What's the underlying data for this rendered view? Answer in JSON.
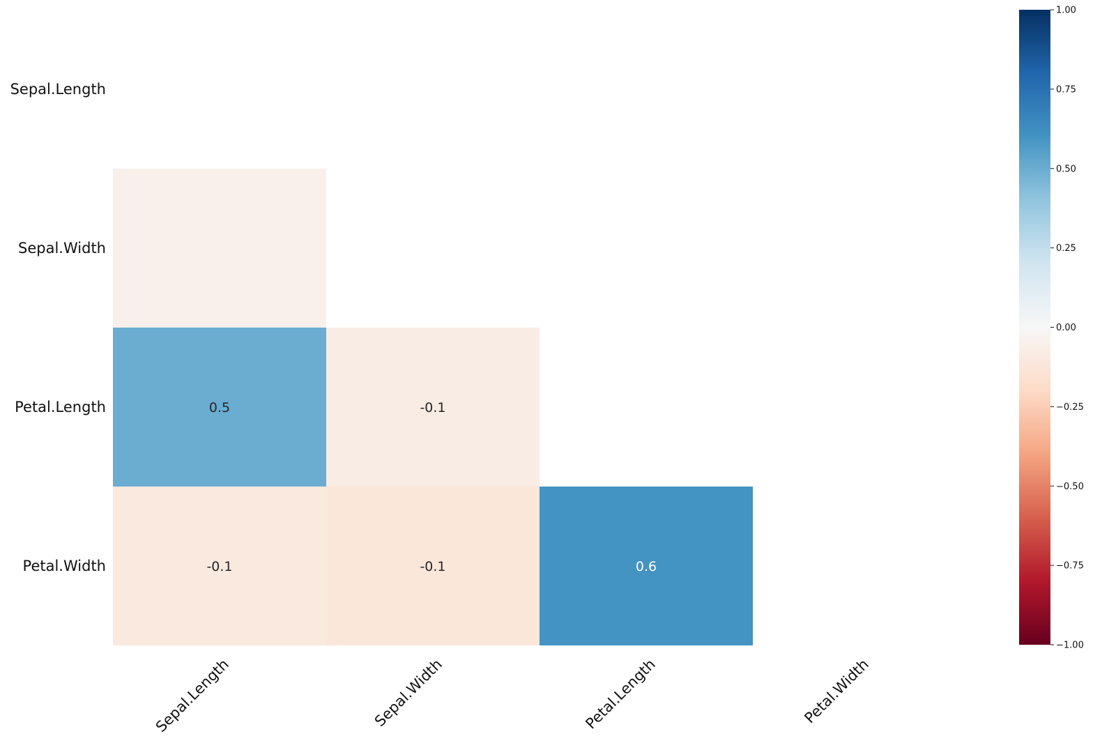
{
  "chart_data": {
    "type": "heatmap",
    "title": "",
    "xlabel": "",
    "ylabel": "",
    "rows": [
      "Sepal.Length",
      "Sepal.Width",
      "Petal.Length",
      "Petal.Width"
    ],
    "columns": [
      "Sepal.Length",
      "Sepal.Width",
      "Petal.Length",
      "Petal.Width"
    ],
    "mask": "upper-triangle-including-diagonal",
    "cells": [
      {
        "row": 1,
        "col": 0,
        "value": -0.05,
        "label": ""
      },
      {
        "row": 2,
        "col": 0,
        "value": 0.5,
        "label": "0.5"
      },
      {
        "row": 2,
        "col": 1,
        "value": -0.08,
        "label": "-0.1"
      },
      {
        "row": 3,
        "col": 0,
        "value": -0.1,
        "label": "-0.1"
      },
      {
        "row": 3,
        "col": 1,
        "value": -0.12,
        "label": "-0.1"
      },
      {
        "row": 3,
        "col": 2,
        "value": 0.6,
        "label": "0.6"
      }
    ],
    "colorbar": {
      "range": [
        -1,
        1
      ],
      "ticks": [
        "1.00",
        "0.75",
        "0.50",
        "0.25",
        "0.00",
        "−0.25",
        "−0.50",
        "−0.75",
        "−1.00"
      ],
      "tick_values": [
        1,
        0.75,
        0.5,
        0.25,
        0,
        -0.25,
        -0.5,
        -0.75,
        -1
      ],
      "colormap": "RdBu",
      "stops": [
        "#67001f",
        "#b2182b",
        "#d6604d",
        "#f4a582",
        "#fddbc7",
        "#f7f7f7",
        "#d1e5f0",
        "#92c5de",
        "#4393c3",
        "#2166ac",
        "#053061"
      ]
    },
    "grid": false,
    "legend": "colorbar-right"
  }
}
